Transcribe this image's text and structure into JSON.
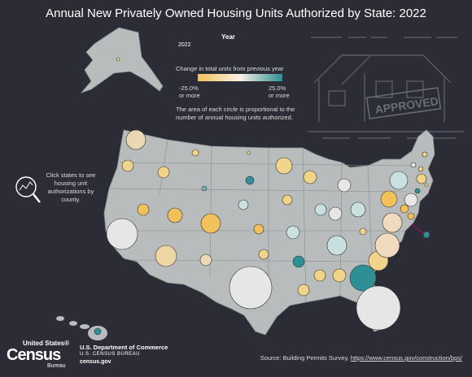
{
  "title": "Annual New Privately Owned Housing Units Authorized by State: 2022",
  "year_filter": {
    "label": "Year",
    "selected": "2022"
  },
  "legend": {
    "caption": "Change in total units from previous year",
    "low_label": "-25.0%",
    "low_sub": "or more",
    "high_label": "25.0%",
    "high_sub": "or more",
    "low_color": "#f2c15a",
    "mid_color": "#f7f1e4",
    "high_color": "#2e8f95"
  },
  "area_note": "The area of each circle is proportional to the number of annual housing units authorized.",
  "click_note": "Click states to see housing unit authorizations by county.",
  "source_prefix": "Source: Building Permits Survey, ",
  "source_link": "https://www.census.gov/construction/bps/",
  "logo": {
    "top": "United States®",
    "main": "Census",
    "bottom": "Bureau"
  },
  "dept": {
    "name": "U.S. Department of Commerce",
    "bureau": "U.S. CENSUS BUREAU",
    "site": "census.gov"
  },
  "stamp_text": "APPROVED",
  "colors": {
    "background": "#2b2c35",
    "land": "#b9bcbc",
    "border": "#8a8d8e"
  }
}
